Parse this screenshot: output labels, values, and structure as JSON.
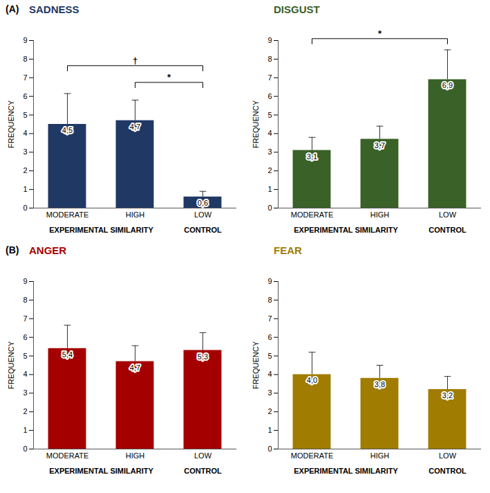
{
  "chart_data": [
    {
      "type": "bar",
      "title": "SADNESS",
      "panel_label": "(A)",
      "categories": [
        "MODERATE",
        "HIGH",
        "LOW"
      ],
      "values": [
        4.5,
        4.7,
        0.6
      ],
      "value_labels": [
        "4,5",
        "4,7",
        "0,6"
      ],
      "errors": [
        1.65,
        1.1,
        0.3
      ],
      "color": "#203864",
      "ylabel": "FREQUENCY",
      "ylim": [
        0,
        9
      ],
      "yticks": [
        0,
        1,
        2,
        3,
        4,
        5,
        6,
        7,
        8,
        9
      ],
      "data_labels": true,
      "groups": [
        {
          "label": "EXPERIMENTAL SIMILARITY",
          "categories": [
            "MODERATE",
            "HIGH"
          ]
        },
        {
          "label": "CONTROL",
          "categories": [
            "LOW"
          ]
        }
      ],
      "comparisons": [
        {
          "from": "MODERATE",
          "to": "LOW",
          "label": "†"
        },
        {
          "from": "HIGH",
          "to": "LOW",
          "label": "*"
        }
      ]
    },
    {
      "type": "bar",
      "title": "DISGUST",
      "categories": [
        "MODERATE",
        "HIGH",
        "LOW"
      ],
      "values": [
        3.1,
        3.7,
        6.9
      ],
      "value_labels": [
        "3,1",
        "3,7",
        "6,9"
      ],
      "errors": [
        0.7,
        0.7,
        1.6
      ],
      "color": "#3a6127",
      "ylabel": "FREQUENCY",
      "ylim": [
        0,
        9
      ],
      "yticks": [
        0,
        1,
        2,
        3,
        4,
        5,
        6,
        7,
        8,
        9
      ],
      "data_labels": true,
      "groups": [
        {
          "label": "EXPERIMENTAL SIMILARITY",
          "categories": [
            "MODERATE",
            "HIGH"
          ]
        },
        {
          "label": "CONTROL",
          "categories": [
            "LOW"
          ]
        }
      ],
      "comparisons": [
        {
          "from": "MODERATE",
          "to": "LOW",
          "label": "*"
        }
      ]
    },
    {
      "type": "bar",
      "title": "ANGER",
      "panel_label": "(B)",
      "categories": [
        "MODERATE",
        "HIGH",
        "LOW"
      ],
      "values": [
        5.4,
        4.7,
        5.3
      ],
      "value_labels": [
        "5,4",
        "4,7",
        "5,3"
      ],
      "errors": [
        1.25,
        0.85,
        0.95
      ],
      "color": "#a50000",
      "ylabel": "FREQUENCY",
      "ylim": [
        0,
        9
      ],
      "yticks": [
        0,
        1,
        2,
        3,
        4,
        5,
        6,
        7,
        8,
        9
      ],
      "data_labels": true,
      "groups": [
        {
          "label": "EXPERIMENTAL SIMILARITY",
          "categories": [
            "MODERATE",
            "HIGH"
          ]
        },
        {
          "label": "CONTROL",
          "categories": [
            "LOW"
          ]
        }
      ],
      "comparisons": []
    },
    {
      "type": "bar",
      "title": "FEAR",
      "categories": [
        "MODERATE",
        "HIGH",
        "LOW"
      ],
      "values": [
        4.0,
        3.8,
        3.2
      ],
      "value_labels": [
        "4,0",
        "3,8",
        "3,2"
      ],
      "errors": [
        1.2,
        0.7,
        0.7
      ],
      "color": "#a07c00",
      "ylabel": "FREQUENCY",
      "ylim": [
        0,
        9
      ],
      "yticks": [
        0,
        1,
        2,
        3,
        4,
        5,
        6,
        7,
        8,
        9
      ],
      "data_labels": true,
      "groups": [
        {
          "label": "EXPERIMENTAL SIMILARITY",
          "categories": [
            "MODERATE",
            "HIGH"
          ]
        },
        {
          "label": "CONTROL",
          "categories": [
            "LOW"
          ]
        }
      ],
      "comparisons": []
    }
  ]
}
